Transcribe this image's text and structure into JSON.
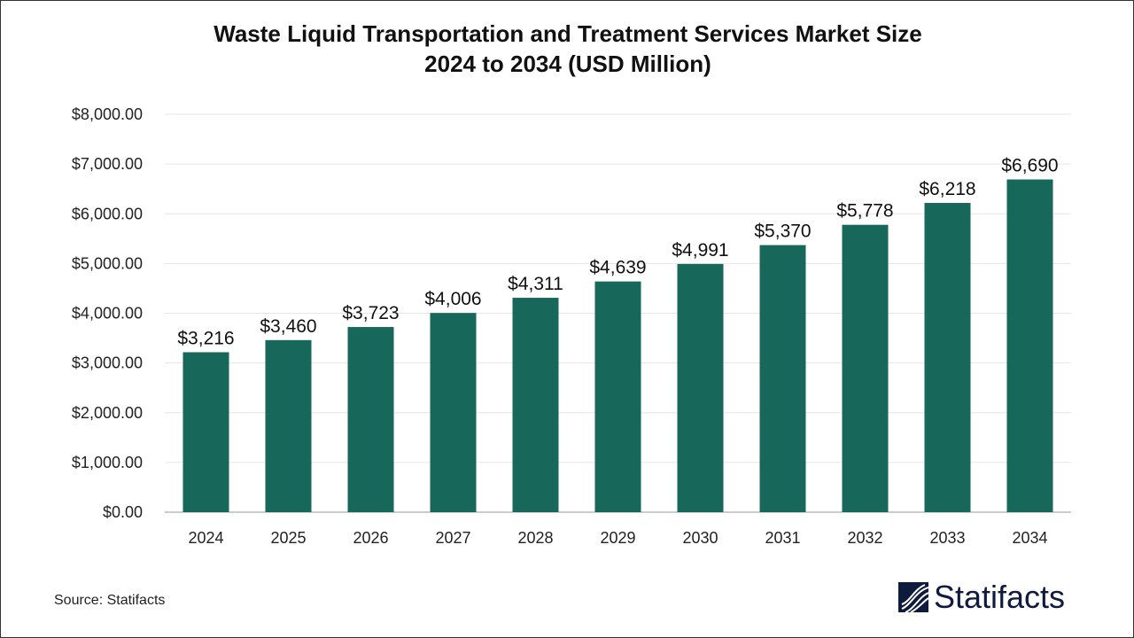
{
  "chart_data": {
    "type": "bar",
    "title": "Waste Liquid Transportation and Treatment Services Market Size",
    "subtitle": "2024 to 2034 (USD Million)",
    "categories": [
      "2024",
      "2025",
      "2026",
      "2027",
      "2028",
      "2029",
      "2030",
      "2031",
      "2032",
      "2033",
      "2034"
    ],
    "values": [
      3216,
      3460,
      3723,
      4006,
      4311,
      4639,
      4991,
      5370,
      5778,
      6218,
      6690
    ],
    "data_labels": [
      "$3,216",
      "$3,460",
      "$3,723",
      "$4,006",
      "$4,311",
      "$4,639",
      "$4,991",
      "$5,370",
      "$5,778",
      "$6,218",
      "$6,690"
    ],
    "ylim": [
      0,
      8000
    ],
    "yticks": [
      "$0.00",
      "$1,000.00",
      "$2,000.00",
      "$3,000.00",
      "$4,000.00",
      "$5,000.00",
      "$6,000.00",
      "$7,000.00",
      "$8,000.00"
    ],
    "grid": true,
    "bar_color": "#17675a"
  },
  "source": "Source: Statifacts",
  "logo": "Statifacts"
}
